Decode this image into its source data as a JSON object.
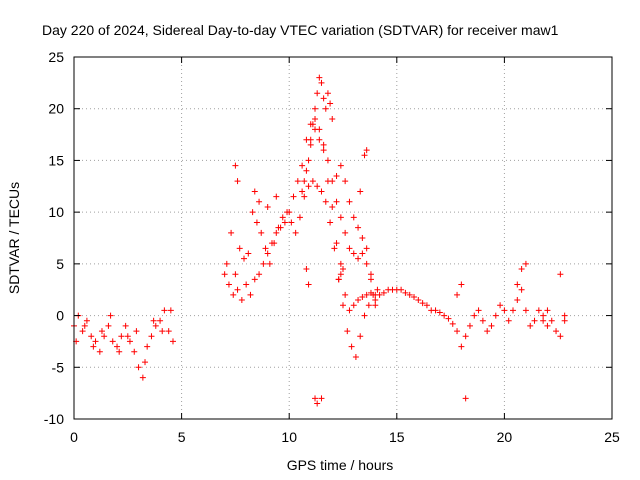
{
  "chart_data": {
    "type": "scatter",
    "marker": "+",
    "title": "Day 220 of 2024, Sidereal Day-to-day VTEC variation (SDTVAR) for receiver maw1",
    "xlabel": "GPS time / hours",
    "ylabel": "SDTVAR / TECUs",
    "xlim": [
      0,
      25
    ],
    "ylim": [
      -10,
      25
    ],
    "x_ticks": [
      0,
      5,
      10,
      15,
      20,
      25
    ],
    "y_ticks": [
      -10,
      -5,
      0,
      5,
      10,
      15,
      20,
      25
    ],
    "x_tick_labels": [
      "0",
      "5",
      "10",
      "15",
      "20",
      "25"
    ],
    "y_tick_labels": [
      "-10",
      "-5",
      "0",
      "5",
      "10",
      "15",
      "20",
      "25"
    ],
    "grid": true,
    "series": [
      {
        "name": "SDTVAR",
        "color": "#ff0000",
        "x": [
          0.0,
          0.2,
          0.4,
          0.6,
          0.8,
          1.0,
          1.2,
          1.4,
          1.6,
          1.8,
          2.0,
          2.2,
          2.4,
          2.6,
          2.8,
          3.0,
          3.2,
          3.4,
          3.6,
          3.8,
          4.0,
          4.2,
          4.4,
          4.6,
          0.1,
          0.5,
          0.9,
          1.3,
          1.7,
          2.1,
          2.5,
          2.9,
          3.3,
          3.7,
          4.1,
          4.5,
          7.0,
          7.2,
          7.4,
          7.6,
          7.8,
          8.0,
          8.2,
          8.4,
          8.6,
          8.8,
          9.0,
          9.2,
          9.4,
          9.6,
          9.8,
          10.0,
          10.2,
          10.4,
          10.6,
          10.8,
          11.0,
          11.2,
          11.4,
          11.6,
          11.8,
          12.0,
          12.2,
          12.4,
          12.6,
          12.8,
          13.0,
          13.2,
          13.4,
          13.6,
          13.8,
          14.0,
          14.2,
          14.4,
          14.6,
          14.8,
          15.0,
          15.2,
          15.4,
          15.6,
          15.8,
          16.0,
          16.2,
          16.4,
          16.6,
          16.8,
          17.0,
          17.2,
          17.4,
          17.6,
          17.8,
          18.0,
          18.2,
          18.4,
          18.6,
          18.8,
          19.0,
          19.2,
          19.4,
          19.6,
          19.8,
          20.0,
          20.2,
          20.4,
          20.6,
          20.8,
          21.0,
          21.2,
          21.4,
          21.6,
          21.8,
          22.0,
          22.2,
          22.4,
          22.6,
          22.8,
          7.1,
          7.3,
          7.5,
          7.7,
          7.9,
          8.1,
          8.3,
          8.5,
          8.7,
          8.9,
          9.1,
          9.3,
          9.5,
          9.7,
          9.9,
          10.1,
          10.3,
          10.5,
          10.7,
          10.9,
          11.1,
          11.3,
          11.5,
          11.7,
          11.9,
          12.1,
          12.3,
          12.5,
          12.7,
          12.9,
          13.1,
          13.3,
          13.5,
          13.7,
          13.9,
          14.1,
          11.0,
          11.1,
          11.2,
          11.3,
          11.4,
          11.5,
          11.6,
          11.7,
          11.8,
          11.9,
          12.0,
          10.6,
          10.7,
          10.8,
          10.9,
          11.0,
          11.2,
          11.4,
          11.6,
          11.8,
          12.0,
          12.2,
          12.4,
          12.6,
          12.8,
          13.0,
          13.2,
          13.4,
          13.6,
          13.8,
          14.0,
          12.2,
          12.4,
          12.6,
          12.8,
          13.0,
          13.2,
          13.4,
          13.6,
          13.8,
          14.0,
          7.5,
          7.6,
          8.4,
          8.6,
          9.0,
          9.4,
          10.8,
          10.9,
          11.2,
          11.3,
          11.5,
          12.3,
          12.4,
          12.5,
          13.3,
          13.5,
          13.6,
          17.8,
          18.0,
          18.2,
          20.6,
          20.8,
          21.0,
          21.8,
          22.0,
          22.6,
          22.8
        ],
        "y": [
          -1.0,
          0.0,
          -1.5,
          -0.5,
          -2.0,
          -2.5,
          -3.5,
          -2.0,
          -1.0,
          -2.5,
          -3.0,
          -2.0,
          -1.0,
          -2.5,
          -3.5,
          -5.0,
          -6.0,
          -3.0,
          -2.0,
          -1.0,
          -0.5,
          0.5,
          -1.5,
          -2.5,
          -2.5,
          -1.0,
          -3.0,
          -1.5,
          0.0,
          -3.5,
          -2.0,
          -1.5,
          -4.5,
          -0.5,
          -1.5,
          0.5,
          4.0,
          3.0,
          2.0,
          2.5,
          1.5,
          3.0,
          2.0,
          3.5,
          4.0,
          5.0,
          6.0,
          7.0,
          8.0,
          8.5,
          9.0,
          10.0,
          11.5,
          13.0,
          14.5,
          17.0,
          18.5,
          19.0,
          18.0,
          16.0,
          13.0,
          10.5,
          7.0,
          4.0,
          2.0,
          0.5,
          1.0,
          1.5,
          1.8,
          2.0,
          2.2,
          2.0,
          2.0,
          2.2,
          2.5,
          2.5,
          2.5,
          2.5,
          2.2,
          2.0,
          1.8,
          1.5,
          1.2,
          1.0,
          0.5,
          0.5,
          0.3,
          0.0,
          -0.3,
          -0.8,
          -1.5,
          -3.0,
          -2.0,
          -1.0,
          0.0,
          0.5,
          -0.5,
          -1.5,
          -1.0,
          0.0,
          1.0,
          0.5,
          -0.5,
          0.5,
          1.5,
          2.5,
          0.5,
          -1.0,
          -0.5,
          0.5,
          0.0,
          -1.0,
          -0.5,
          -1.5,
          -2.0,
          -0.5,
          5.0,
          8.0,
          4.0,
          6.5,
          5.5,
          6.0,
          10.0,
          9.0,
          8.0,
          6.5,
          5.0,
          7.0,
          8.5,
          9.5,
          10.0,
          9.0,
          8.0,
          9.5,
          11.5,
          12.5,
          13.0,
          12.5,
          12.0,
          11.0,
          9.0,
          6.5,
          3.5,
          1.0,
          -1.5,
          -3.0,
          -4.0,
          -2.0,
          0.0,
          1.0,
          2.0,
          2.5,
          17.0,
          18.5,
          20.0,
          21.5,
          23.0,
          22.5,
          21.0,
          20.0,
          21.5,
          20.5,
          19.0,
          12.0,
          13.0,
          14.0,
          15.0,
          16.5,
          18.0,
          17.0,
          16.5,
          15.0,
          13.0,
          11.0,
          9.5,
          8.0,
          6.5,
          6.0,
          5.5,
          6.0,
          5.0,
          3.5,
          1.5,
          13.5,
          14.5,
          13.0,
          11.0,
          9.5,
          8.5,
          7.5,
          6.5,
          4.0,
          1.0,
          14.5,
          13.0,
          12.0,
          11.0,
          10.5,
          11.5,
          4.5,
          3.0,
          -8.0,
          -8.5,
          -8.0,
          3.5,
          5.0,
          4.5,
          12.0,
          15.5,
          16.0,
          2.0,
          3.0,
          -8.0,
          3.0,
          4.5,
          5.0,
          -0.5,
          0.5,
          4.0,
          0.0
        ]
      }
    ]
  }
}
